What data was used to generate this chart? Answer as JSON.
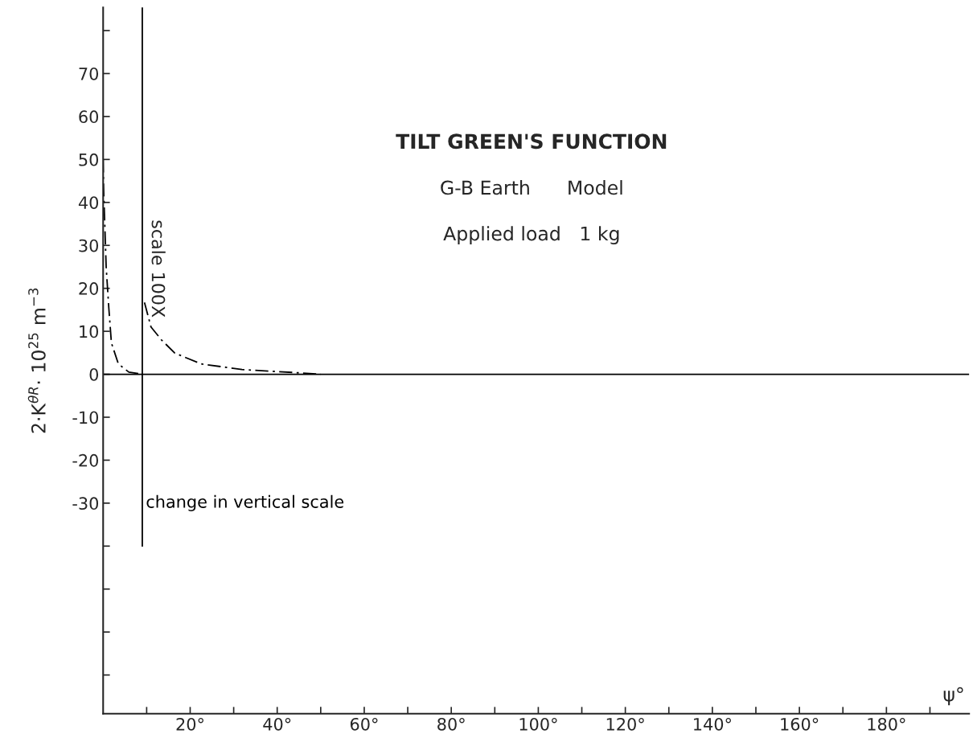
{
  "chart_data": {
    "type": "line",
    "title": "TILT GREEN'S FUNCTION",
    "subtitle": "G-B Earth      Model",
    "annotations": [
      "Applied load   1 kg",
      "scale 100X"
    ],
    "xlabel": "ψ°",
    "ylabel": "2·K$^{θR}$· 10$^{25}$ m$^{−3}$",
    "series": [
      {
        "color": "#000000",
        "line_style": "dashed",
        "x": [
          0,
          0.1,
          0.7,
          1.3,
          1.9,
          3.5,
          5.9,
          9.1
        ],
        "values": [
          50,
          43.6,
          24.9,
          15.5,
          7.3,
          2.4,
          0.5,
          0
        ]
      },
      {
        "color": "#000000",
        "line_style": "dashed",
        "x": [
          9.5,
          11,
          13.4,
          16.5,
          22.6,
          31.9,
          44,
          50
        ],
        "values": [
          16.7,
          11,
          8,
          4.9,
          2.4,
          1.1,
          0.4,
          0
        ]
      },
      {
        "name": "change in vertical scale",
        "color": "#000000",
        "line_style": "solid",
        "x": [
          9,
          9
        ],
        "values": [
          85.4,
          -40
        ]
      }
    ],
    "ref_lines": [
      {
        "axis": "y",
        "value": 0,
        "color": "#000000"
      }
    ],
    "xlim": [
      0,
      199
    ],
    "ylim": [
      -79,
      85.4
    ],
    "xticks": [
      {
        "value": 10,
        "label": null
      },
      {
        "value": 20,
        "label": "20°"
      },
      {
        "value": 30,
        "label": null
      },
      {
        "value": 40,
        "label": "40°"
      },
      {
        "value": 50,
        "label": null
      },
      {
        "value": 60,
        "label": "60°"
      },
      {
        "value": 70,
        "label": null
      },
      {
        "value": 80,
        "label": "80°"
      },
      {
        "value": 90,
        "label": null
      },
      {
        "value": 100,
        "label": "100°"
      },
      {
        "value": 110,
        "label": null
      },
      {
        "value": 120,
        "label": "120°"
      },
      {
        "value": 130,
        "label": null
      },
      {
        "value": 140,
        "label": "140°"
      },
      {
        "value": 150,
        "label": null
      },
      {
        "value": 160,
        "label": "160°"
      },
      {
        "value": 170,
        "label": null
      },
      {
        "value": 180,
        "label": "180°"
      },
      {
        "value": 190,
        "label": null
      }
    ],
    "yticks": [
      {
        "value": 80,
        "label": null
      },
      70,
      60,
      50,
      40,
      30,
      20,
      10,
      0,
      -10,
      -20,
      -30,
      {
        "value": -40,
        "label": null
      },
      {
        "value": -50,
        "label": null
      },
      {
        "value": -60,
        "label": null
      },
      {
        "value": -70,
        "label": null
      }
    ],
    "grid": false
  }
}
